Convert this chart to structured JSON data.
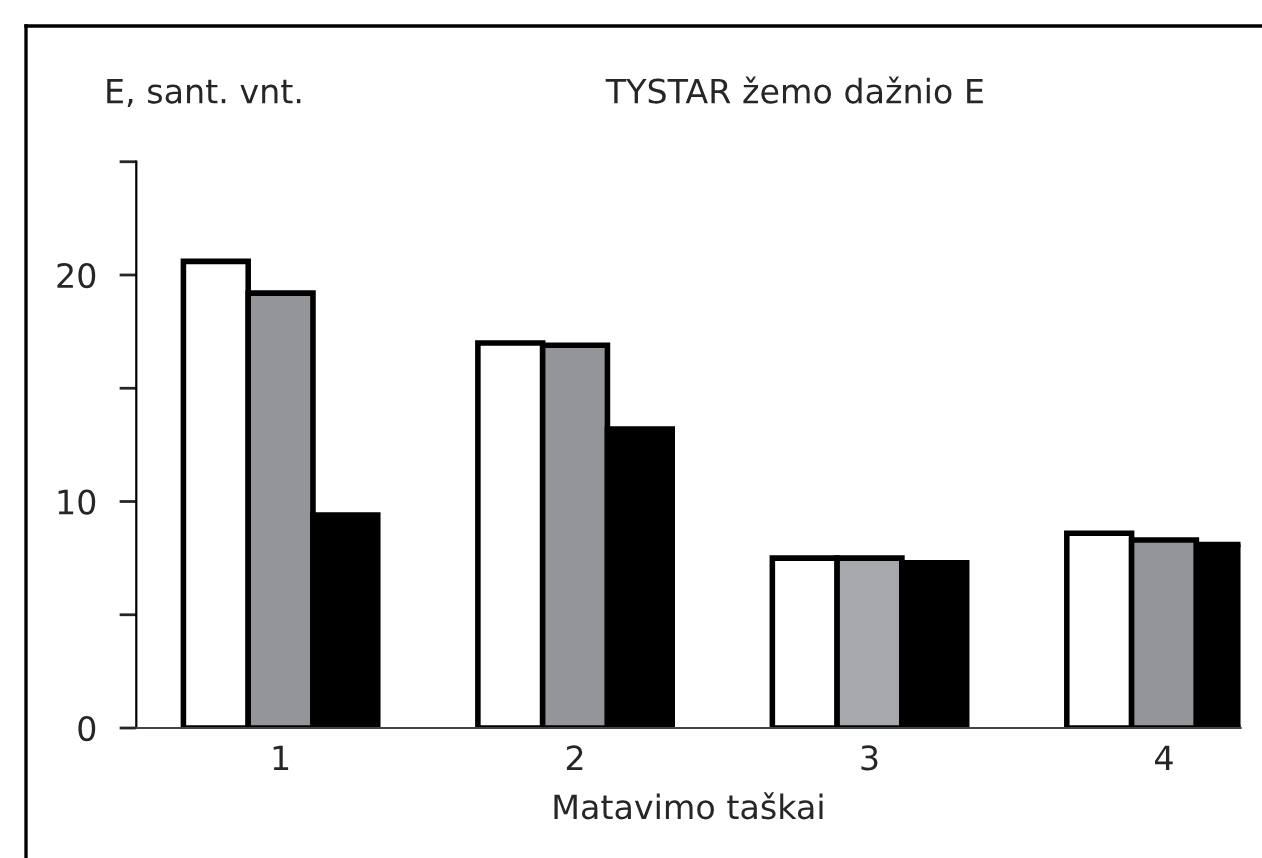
{
  "chart_data": {
    "type": "bar",
    "title": "TYSTAR žemo dažnio E",
    "ylabel": "E, sant. vnt.",
    "xlabel": "Matavimo taškai",
    "categories": [
      "1",
      "2",
      "3",
      "4"
    ],
    "series": [
      {
        "color": "#ffffff",
        "values": [
          20.6,
          17.0,
          7.5,
          8.6
        ]
      },
      {
        "colors": [
          "#939598",
          "#939598",
          "#a7a8ab",
          "#939598"
        ],
        "values": [
          19.2,
          16.9,
          7.5,
          8.3
        ]
      },
      {
        "color": "#000000",
        "values": [
          9.4,
          13.2,
          7.3,
          8.1
        ]
      }
    ],
    "ylim": [
      0,
      25
    ],
    "yticks": [
      0,
      {
        "value": 5,
        "label": null
      },
      10,
      {
        "value": 15,
        "label": null
      },
      20,
      {
        "value": 25,
        "label": null
      }
    ],
    "grid": false,
    "legend": false
  }
}
